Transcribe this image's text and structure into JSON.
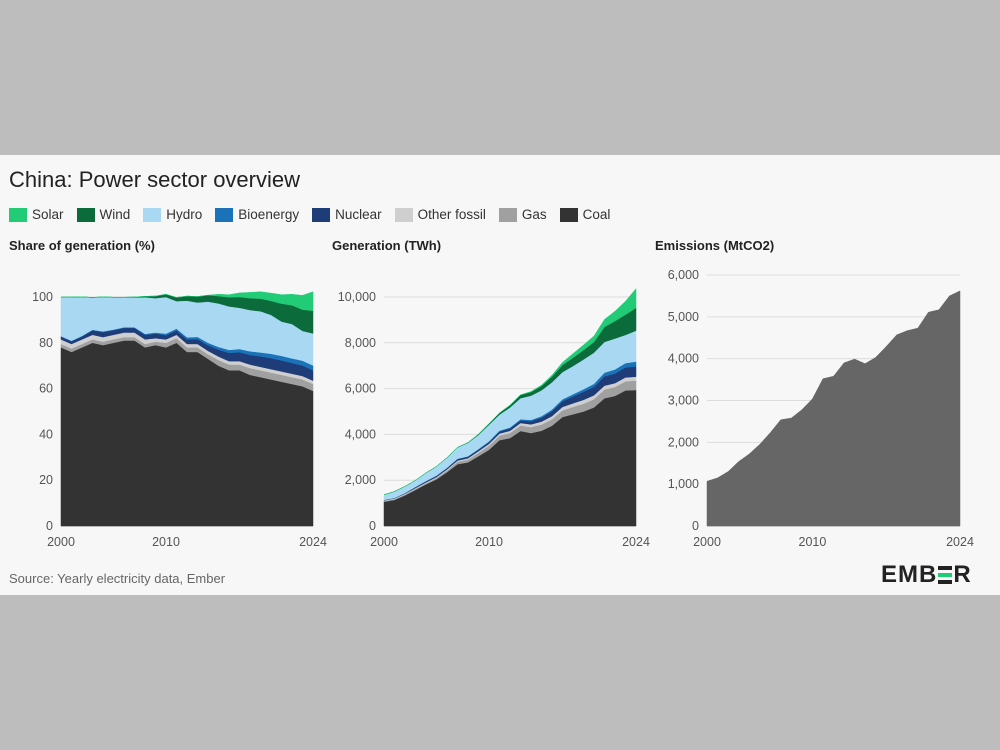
{
  "title": "China: Power sector overview",
  "legend": [
    {
      "label": "Solar",
      "color": "#22cc77"
    },
    {
      "label": "Wind",
      "color": "#0b6b3a"
    },
    {
      "label": "Hydro",
      "color": "#a9d8f3"
    },
    {
      "label": "Bioenergy",
      "color": "#1a72b8"
    },
    {
      "label": "Nuclear",
      "color": "#1e3c78"
    },
    {
      "label": "Other fossil",
      "color": "#cfcfcf"
    },
    {
      "label": "Gas",
      "color": "#a0a0a0"
    },
    {
      "label": "Coal",
      "color": "#333333"
    }
  ],
  "source": "Source: Yearly electricity data, Ember",
  "logo": {
    "left": "EMB",
    "right": "R"
  },
  "chart_data": [
    {
      "type": "area",
      "title": "Share of generation (%)",
      "x": [
        2000,
        2001,
        2002,
        2003,
        2004,
        2005,
        2006,
        2007,
        2008,
        2009,
        2010,
        2011,
        2012,
        2013,
        2014,
        2015,
        2016,
        2017,
        2018,
        2019,
        2020,
        2021,
        2022,
        2023,
        2024
      ],
      "xticks": [
        "2000",
        "2010",
        "2024"
      ],
      "ylim": [
        0,
        100
      ],
      "yticks": [
        "0",
        "20",
        "40",
        "60",
        "80",
        "100"
      ],
      "stacked": true,
      "series": [
        {
          "name": "Coal",
          "color": "#333333",
          "values": [
            78,
            76,
            78,
            80,
            79,
            80,
            81,
            81,
            78,
            79,
            78,
            80,
            76,
            76,
            73,
            70,
            68,
            68,
            66,
            65,
            64,
            63,
            62,
            61,
            59
          ]
        },
        {
          "name": "Gas",
          "color": "#a0a0a0",
          "values": [
            1.5,
            1.5,
            1.5,
            1.5,
            1.5,
            1.5,
            1.5,
            1.5,
            1.5,
            1.5,
            2,
            2,
            2,
            2,
            2,
            2.5,
            2.5,
            2.5,
            3,
            3,
            3,
            3,
            3,
            3,
            3
          ]
        },
        {
          "name": "Other fossil",
          "color": "#cfcfcf",
          "values": [
            2,
            2,
            2,
            2,
            2,
            2,
            2,
            2,
            2,
            1.5,
            1.5,
            1.5,
            1.5,
            1.5,
            1.5,
            1.5,
            1.5,
            1.5,
            1.5,
            1.5,
            1.5,
            1.5,
            1.5,
            1.5,
            1.5
          ]
        },
        {
          "name": "Nuclear",
          "color": "#1e3c78",
          "values": [
            1.2,
            1.2,
            1.3,
            2,
            2.2,
            2,
            2,
            2,
            2,
            2,
            1.8,
            1.9,
            2,
            2.1,
            2.4,
            3,
            3.6,
            3.9,
            4.2,
            4.6,
            4.8,
            4.8,
            4.7,
            4.6,
            4.5
          ]
        },
        {
          "name": "Bioenergy",
          "color": "#1a72b8",
          "values": [
            0.2,
            0.2,
            0.2,
            0.2,
            0.3,
            0.3,
            0.3,
            0.3,
            0.4,
            0.5,
            0.7,
            0.8,
            0.9,
            1,
            1.1,
            1.2,
            1.3,
            1.4,
            1.6,
            1.7,
            1.9,
            2,
            2,
            2.1,
            2.1
          ]
        },
        {
          "name": "Hydro",
          "color": "#a9d8f3",
          "values": [
            17,
            19,
            17,
            14,
            15,
            14,
            13,
            13,
            16,
            15,
            16,
            12,
            16,
            15,
            18,
            19,
            19,
            18,
            18,
            18,
            17,
            15,
            15,
            13,
            14
          ]
        },
        {
          "name": "Wind",
          "color": "#0b6b3a",
          "values": [
            0.1,
            0.1,
            0.1,
            0.1,
            0.1,
            0.1,
            0.1,
            0.2,
            0.4,
            0.9,
            1.2,
            1.6,
            2,
            2.6,
            2.8,
            3.2,
            4,
            4.7,
            5.2,
            5.5,
            6.1,
            7.8,
            8.2,
            9.3,
            9.9
          ]
        },
        {
          "name": "Solar",
          "color": "#22cc77",
          "values": [
            0,
            0,
            0,
            0,
            0,
            0,
            0,
            0,
            0,
            0,
            0,
            0,
            0,
            0,
            0,
            0.8,
            1.1,
            1.8,
            2.5,
            3,
            3.4,
            3.9,
            4.8,
            6.2,
            8.3
          ]
        }
      ]
    },
    {
      "type": "area",
      "title": "Generation (TWh)",
      "x": [
        2000,
        2001,
        2002,
        2003,
        2004,
        2005,
        2006,
        2007,
        2008,
        2009,
        2010,
        2011,
        2012,
        2013,
        2014,
        2015,
        2016,
        2017,
        2018,
        2019,
        2020,
        2021,
        2022,
        2023,
        2024
      ],
      "xticks": [
        "2000",
        "2010",
        "2024"
      ],
      "ylim": [
        0,
        10000
      ],
      "yticks": [
        "0",
        "2,000",
        "4,000",
        "6,000",
        "8,000",
        "10,000"
      ],
      "stacked": true,
      "series": [
        {
          "name": "Coal",
          "color": "#333333",
          "values": [
            1060,
            1140,
            1340,
            1580,
            1820,
            2040,
            2350,
            2700,
            2780,
            3050,
            3330,
            3750,
            3840,
            4150,
            4060,
            4160,
            4380,
            4760,
            4880,
            5000,
            5180,
            5580,
            5680,
            5920,
            5940
          ]
        },
        {
          "name": "Gas",
          "color": "#a0a0a0",
          "values": [
            30,
            35,
            40,
            45,
            50,
            60,
            80,
            110,
            120,
            150,
            180,
            200,
            220,
            240,
            260,
            270,
            280,
            290,
            320,
            340,
            360,
            380,
            390,
            400,
            410
          ]
        },
        {
          "name": "Other fossil",
          "color": "#cfcfcf",
          "values": [
            30,
            30,
            32,
            34,
            36,
            40,
            45,
            50,
            60,
            70,
            80,
            90,
            100,
            110,
            120,
            130,
            140,
            150,
            160,
            170,
            170,
            170,
            170,
            170,
            170
          ]
        },
        {
          "name": "Nuclear",
          "color": "#1e3c78",
          "values": [
            17,
            17,
            25,
            43,
            50,
            53,
            55,
            62,
            68,
            70,
            74,
            87,
            98,
            112,
            133,
            171,
            213,
            248,
            295,
            348,
            366,
            408,
            418,
            434,
            451
          ]
        },
        {
          "name": "Bioenergy",
          "color": "#1a72b8",
          "values": [
            5,
            5,
            6,
            8,
            10,
            12,
            15,
            18,
            20,
            25,
            35,
            40,
            45,
            50,
            60,
            65,
            75,
            85,
            100,
            115,
            135,
            160,
            180,
            190,
            210
          ]
        },
        {
          "name": "Hydro",
          "color": "#a9d8f3",
          "values": [
            222,
            277,
            288,
            284,
            354,
            397,
            436,
            486,
            585,
            616,
            722,
            699,
            872,
            920,
            1060,
            1130,
            1190,
            1190,
            1230,
            1300,
            1360,
            1340,
            1350,
            1230,
            1350
          ]
        },
        {
          "name": "Wind",
          "color": "#0b6b3a",
          "values": [
            1,
            1,
            1,
            1,
            1,
            2,
            4,
            6,
            13,
            28,
            45,
            70,
            96,
            139,
            156,
            186,
            241,
            305,
            366,
            406,
            467,
            656,
            763,
            886,
            997
          ]
        },
        {
          "name": "Solar",
          "color": "#22cc77",
          "values": [
            0,
            0,
            0,
            0,
            0,
            0,
            0,
            0,
            0,
            0,
            1,
            3,
            4,
            8,
            24,
            39,
            67,
            118,
            177,
            224,
            261,
            327,
            428,
            584,
            834
          ]
        }
      ]
    },
    {
      "type": "area",
      "title": "Emissions (MtCO2)",
      "x": [
        2000,
        2001,
        2002,
        2003,
        2004,
        2005,
        2006,
        2007,
        2008,
        2009,
        2010,
        2011,
        2012,
        2013,
        2014,
        2015,
        2016,
        2017,
        2018,
        2019,
        2020,
        2021,
        2022,
        2023,
        2024
      ],
      "xticks": [
        "2000",
        "2010",
        "2024"
      ],
      "ylim": [
        0,
        6000
      ],
      "yticks": [
        "0",
        "1,000",
        "2,000",
        "3,000",
        "4,000",
        "5,000",
        "6,000"
      ],
      "series": [
        {
          "name": "Emissions",
          "color": "#666666",
          "values": [
            1070,
            1150,
            1300,
            1540,
            1720,
            1950,
            2230,
            2540,
            2580,
            2780,
            3040,
            3520,
            3580,
            3900,
            3990,
            3880,
            4030,
            4290,
            4570,
            4670,
            4730,
            5110,
            5170,
            5500,
            5620
          ]
        }
      ]
    }
  ]
}
